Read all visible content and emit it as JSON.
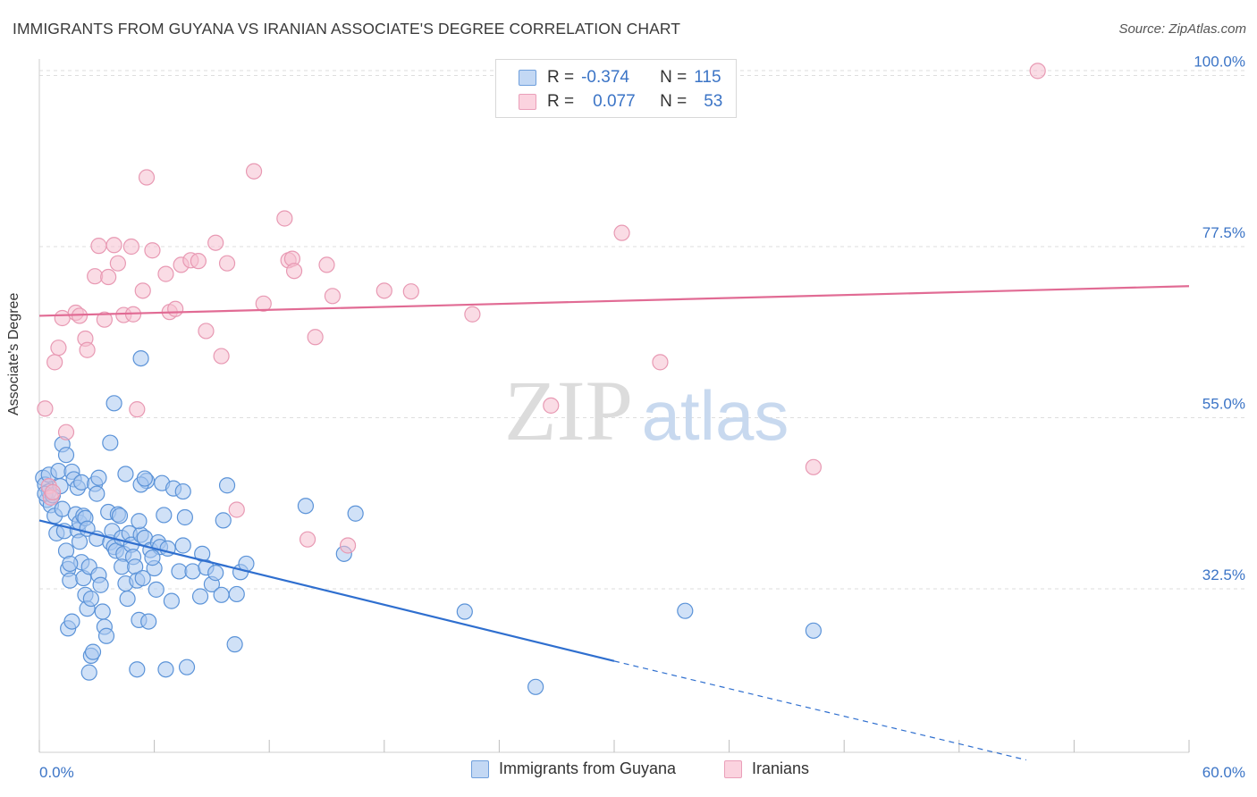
{
  "title": "IMMIGRANTS FROM GUYANA VS IRANIAN ASSOCIATE'S DEGREE CORRELATION CHART",
  "source": "Source: ZipAtlas.com",
  "watermark": {
    "zip": "ZIP",
    "atlas": "atlas"
  },
  "legend": {
    "rows": [
      {
        "r_label": "R =",
        "r_value": "-0.374",
        "n_label": "N =",
        "n_value": "115"
      },
      {
        "r_label": "R =",
        "r_value": "0.077",
        "n_label": "N =",
        "n_value": "53"
      }
    ]
  },
  "colors": {
    "blue_fill": "#a9c8f0",
    "blue_stroke": "#5b93d8",
    "blue_line": "#2f6fcf",
    "pink_fill": "#f6bfd0",
    "pink_stroke": "#e899b3",
    "pink_line": "#e16b94",
    "tick_text": "#3b74c6",
    "grid": "#dedede"
  },
  "chart_data": {
    "type": "scatter",
    "title": "IMMIGRANTS FROM GUYANA VS IRANIAN ASSOCIATE'S DEGREE CORRELATION CHART",
    "xlabel": "",
    "ylabel": "Associate's Degree",
    "xlim": [
      0,
      60
    ],
    "ylim": [
      10,
      103
    ],
    "x_ticks": [
      0,
      6,
      12,
      18,
      24,
      30,
      36,
      42,
      48,
      54,
      60
    ],
    "x_tick_labels": {
      "0": "0.0%",
      "60": "60.0%"
    },
    "y_ticks": [
      32.5,
      55.0,
      77.5,
      100.0
    ],
    "y_tick_labels": [
      "32.5%",
      "55.0%",
      "77.5%",
      "100.0%"
    ],
    "grid": true,
    "legend_position": "top-center",
    "series": [
      {
        "name": "Immigrants from Guyana",
        "color": "#5b93d8",
        "trend": {
          "x0": 0,
          "y0": 41.5,
          "x1": 30,
          "y1": 23.0,
          "dash_to_x": 51.5,
          "dash_to_y": 10.0
        },
        "points": [
          [
            0.2,
            47.1
          ],
          [
            0.3,
            46.2
          ],
          [
            0.4,
            44.2
          ],
          [
            0.5,
            45.3
          ],
          [
            0.6,
            43.5
          ],
          [
            0.3,
            45.0
          ],
          [
            0.5,
            47.5
          ],
          [
            0.7,
            44.8
          ],
          [
            0.8,
            42.1
          ],
          [
            0.9,
            39.8
          ],
          [
            1.0,
            48.0
          ],
          [
            1.1,
            46.0
          ],
          [
            1.2,
            43.0
          ],
          [
            1.3,
            40.1
          ],
          [
            1.4,
            37.5
          ],
          [
            1.5,
            35.1
          ],
          [
            1.6,
            33.6
          ],
          [
            1.2,
            51.5
          ],
          [
            1.4,
            50.1
          ],
          [
            1.7,
            47.9
          ],
          [
            1.8,
            46.9
          ],
          [
            1.9,
            42.3
          ],
          [
            2.0,
            40.2
          ],
          [
            2.1,
            38.7
          ],
          [
            2.2,
            36.0
          ],
          [
            2.3,
            33.9
          ],
          [
            2.4,
            31.7
          ],
          [
            2.5,
            29.9
          ],
          [
            1.5,
            27.3
          ],
          [
            1.7,
            28.2
          ],
          [
            2.0,
            45.8
          ],
          [
            2.1,
            41.2
          ],
          [
            2.2,
            46.5
          ],
          [
            2.3,
            42.1
          ],
          [
            2.4,
            41.8
          ],
          [
            2.5,
            40.4
          ],
          [
            2.6,
            35.4
          ],
          [
            2.7,
            31.2
          ],
          [
            2.6,
            21.5
          ],
          [
            2.7,
            23.7
          ],
          [
            2.8,
            24.2
          ],
          [
            2.9,
            46.3
          ],
          [
            3.0,
            45.0
          ],
          [
            3.1,
            47.1
          ],
          [
            3.0,
            39.1
          ],
          [
            3.1,
            34.3
          ],
          [
            3.2,
            33.0
          ],
          [
            3.3,
            29.5
          ],
          [
            3.4,
            27.5
          ],
          [
            3.5,
            26.3
          ],
          [
            3.6,
            42.6
          ],
          [
            3.7,
            38.6
          ],
          [
            3.8,
            40.1
          ],
          [
            3.9,
            38.0
          ],
          [
            4.0,
            37.5
          ],
          [
            4.1,
            42.3
          ],
          [
            4.2,
            42.1
          ],
          [
            4.3,
            39.2
          ],
          [
            4.4,
            37.1
          ],
          [
            4.5,
            33.2
          ],
          [
            4.6,
            31.2
          ],
          [
            3.7,
            51.7
          ],
          [
            3.9,
            56.9
          ],
          [
            4.3,
            35.4
          ],
          [
            4.5,
            47.6
          ],
          [
            4.7,
            39.8
          ],
          [
            4.8,
            38.3
          ],
          [
            4.9,
            36.7
          ],
          [
            5.0,
            35.4
          ],
          [
            5.1,
            33.6
          ],
          [
            5.2,
            28.4
          ],
          [
            5.3,
            39.6
          ],
          [
            5.5,
            39.2
          ],
          [
            5.7,
            28.2
          ],
          [
            5.6,
            46.7
          ],
          [
            5.2,
            41.4
          ],
          [
            5.8,
            37.6
          ],
          [
            6.0,
            35.2
          ],
          [
            5.3,
            46.2
          ],
          [
            5.4,
            33.9
          ],
          [
            6.2,
            38.6
          ],
          [
            6.3,
            38.0
          ],
          [
            6.4,
            46.4
          ],
          [
            5.1,
            21.9
          ],
          [
            6.5,
            42.2
          ],
          [
            6.7,
            37.8
          ],
          [
            6.9,
            30.9
          ],
          [
            7.3,
            34.8
          ],
          [
            7.5,
            38.2
          ],
          [
            5.3,
            62.8
          ],
          [
            5.5,
            47.0
          ],
          [
            5.9,
            36.6
          ],
          [
            6.1,
            32.4
          ],
          [
            6.6,
            21.9
          ],
          [
            7.0,
            45.7
          ],
          [
            7.5,
            45.3
          ],
          [
            7.6,
            41.9
          ],
          [
            8.0,
            34.8
          ],
          [
            8.4,
            31.5
          ],
          [
            7.7,
            22.2
          ],
          [
            8.5,
            37.1
          ],
          [
            8.7,
            35.3
          ],
          [
            9.0,
            33.1
          ],
          [
            9.2,
            34.6
          ],
          [
            9.5,
            31.7
          ],
          [
            9.6,
            41.5
          ],
          [
            9.8,
            46.1
          ],
          [
            10.2,
            25.2
          ],
          [
            10.3,
            31.8
          ],
          [
            10.5,
            34.7
          ],
          [
            10.8,
            35.8
          ],
          [
            13.9,
            43.4
          ],
          [
            15.9,
            37.1
          ],
          [
            16.5,
            42.4
          ],
          [
            22.2,
            29.5
          ],
          [
            25.9,
            19.6
          ],
          [
            33.7,
            29.6
          ],
          [
            40.4,
            27.0
          ],
          [
            1.6,
            35.8
          ]
        ]
      },
      {
        "name": "Iranians",
        "color": "#e899b3",
        "trend": {
          "x0": 0,
          "y0": 68.4,
          "x1": 60,
          "y1": 72.3
        },
        "points": [
          [
            0.3,
            56.2
          ],
          [
            0.5,
            46.0
          ],
          [
            0.6,
            44.5
          ],
          [
            0.7,
            45.2
          ],
          [
            0.8,
            62.3
          ],
          [
            1.0,
            64.2
          ],
          [
            1.2,
            68.1
          ],
          [
            1.4,
            53.1
          ],
          [
            1.9,
            68.8
          ],
          [
            2.1,
            68.4
          ],
          [
            2.4,
            65.4
          ],
          [
            2.5,
            63.9
          ],
          [
            2.9,
            73.6
          ],
          [
            3.1,
            77.6
          ],
          [
            3.4,
            67.9
          ],
          [
            3.6,
            73.5
          ],
          [
            3.9,
            77.7
          ],
          [
            4.1,
            75.3
          ],
          [
            4.4,
            68.5
          ],
          [
            4.8,
            77.5
          ],
          [
            4.9,
            68.6
          ],
          [
            5.1,
            56.1
          ],
          [
            5.4,
            71.7
          ],
          [
            5.6,
            86.6
          ],
          [
            5.9,
            77.0
          ],
          [
            6.6,
            73.9
          ],
          [
            6.8,
            68.9
          ],
          [
            7.1,
            69.3
          ],
          [
            7.4,
            75.1
          ],
          [
            7.9,
            75.7
          ],
          [
            8.3,
            75.6
          ],
          [
            8.7,
            66.4
          ],
          [
            9.2,
            78.0
          ],
          [
            9.5,
            63.1
          ],
          [
            9.8,
            75.3
          ],
          [
            10.3,
            42.9
          ],
          [
            11.2,
            87.4
          ],
          [
            11.7,
            70.0
          ],
          [
            12.8,
            81.2
          ],
          [
            13.0,
            75.7
          ],
          [
            13.2,
            75.9
          ],
          [
            13.3,
            74.3
          ],
          [
            14.0,
            39.0
          ],
          [
            14.4,
            65.6
          ],
          [
            15.0,
            75.1
          ],
          [
            15.3,
            71.0
          ],
          [
            16.1,
            38.2
          ],
          [
            18.0,
            71.7
          ],
          [
            19.4,
            71.6
          ],
          [
            22.6,
            68.6
          ],
          [
            26.7,
            56.6
          ],
          [
            30.4,
            79.3
          ],
          [
            32.4,
            62.3
          ],
          [
            40.4,
            48.5
          ],
          [
            52.1,
            100.6
          ]
        ]
      }
    ]
  },
  "bottom_legend": {
    "items": [
      {
        "label": "Immigrants from Guyana"
      },
      {
        "label": "Iranians"
      }
    ]
  }
}
